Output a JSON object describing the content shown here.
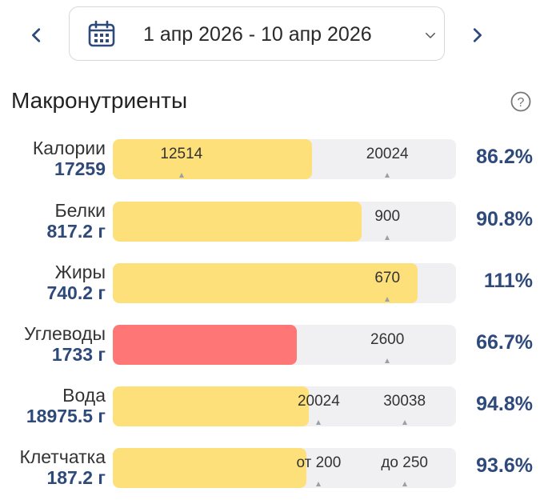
{
  "header": {
    "date_range": "1 апр 2026 - 10 апр 2026",
    "prev_icon": "chevron-left-icon",
    "next_icon": "chevron-right-icon",
    "calendar_icon": "calendar-icon",
    "dropdown_icon": "chevron-down-icon"
  },
  "section": {
    "title": "Макронутриенты",
    "help_icon": "help-circle-icon"
  },
  "colors": {
    "accent": "#2e4a7a",
    "fill_ok": "#fde07a",
    "fill_low": "#ff7677",
    "track": "#f0f0f2"
  },
  "macros": [
    {
      "name": "Калории",
      "value": "17259",
      "percent": "86.2%",
      "fill_fraction": 0.58,
      "fill_color": "#fde07a",
      "markers": [
        {
          "label": "12514",
          "pos": 0.2,
          "tri": true
        },
        {
          "label": "20024",
          "pos": 0.8,
          "tri": true
        }
      ]
    },
    {
      "name": "Белки",
      "value": "817.2 г",
      "percent": "90.8%",
      "fill_fraction": 0.725,
      "fill_color": "#fde07a",
      "markers": [
        {
          "label": "900",
          "pos": 0.8,
          "tri": true
        }
      ]
    },
    {
      "name": "Жиры",
      "value": "740.2 г",
      "percent": "111%",
      "fill_fraction": 0.888,
      "fill_color": "#fde07a",
      "markers": [
        {
          "label": "670",
          "pos": 0.8,
          "tri": true
        }
      ]
    },
    {
      "name": "Углеводы",
      "value": "1733 г",
      "percent": "66.7%",
      "fill_fraction": 0.535,
      "fill_color": "#ff7677",
      "markers": [
        {
          "label": "2600",
          "pos": 0.8,
          "tri": true
        }
      ]
    },
    {
      "name": "Вода",
      "value": "18975.5 г",
      "percent": "94.8%",
      "fill_fraction": 0.57,
      "fill_color": "#fde07a",
      "markers": [
        {
          "label": "20024",
          "pos": 0.6,
          "tri": true
        },
        {
          "label": "30038",
          "pos": 0.85,
          "tri": true
        }
      ]
    },
    {
      "name": "Клетчатка",
      "value": "187.2 г",
      "percent": "93.6%",
      "fill_fraction": 0.565,
      "fill_color": "#fde07a",
      "markers": [
        {
          "label": "от 200",
          "pos": 0.6,
          "tri": true
        },
        {
          "label": "до 250",
          "pos": 0.85,
          "tri": true
        }
      ]
    }
  ]
}
